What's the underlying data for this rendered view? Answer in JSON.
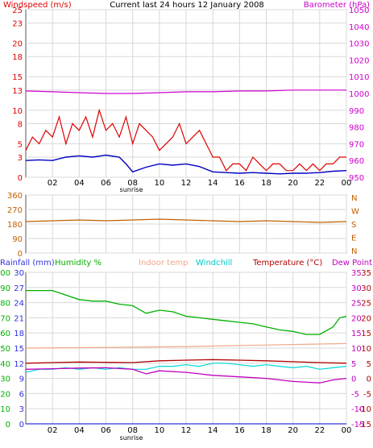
{
  "title": "Current last 24 hours 12 January 2008",
  "colors": {
    "wind": "#e00000",
    "wind_avg": "#0000c0",
    "baro": "#d000d0",
    "dir": "#c06000",
    "rain": "#3030e0",
    "humidity": "#00b000",
    "indoor": "#f0a888",
    "windchill": "#00d8d8",
    "temp": "#b00000",
    "dew": "#c000c0",
    "grid": "#d8d8d8"
  },
  "x_ticks": [
    "02",
    "04",
    "06",
    "08",
    "10",
    "12",
    "14",
    "16",
    "18",
    "20",
    "22",
    "00"
  ],
  "sunrise_label": "sunrise",
  "chart_data": [
    {
      "type": "line",
      "panel": "wind_pressure",
      "title": "Current last 24 hours 12 January 2008",
      "left_axis": {
        "label": "Windspeed (m/s)",
        "ticks": [
          0,
          3,
          5,
          8,
          10,
          13,
          15,
          18,
          20,
          23,
          25
        ],
        "range": [
          0,
          25
        ]
      },
      "right_axis": {
        "label": "Barometer (hPa)",
        "ticks": [
          950,
          960,
          970,
          980,
          990,
          1000,
          1010,
          1020,
          1030,
          1040,
          1050
        ],
        "range": [
          950,
          1050
        ]
      },
      "x_hours": [
        0,
        24
      ],
      "series": [
        {
          "key": "gust",
          "x": [
            0,
            0.5,
            1,
            1.5,
            2,
            2.5,
            3,
            3.5,
            4,
            4.5,
            5,
            5.5,
            6,
            6.5,
            7,
            7.5,
            8,
            8.5,
            9,
            9.5,
            10,
            10.5,
            11,
            11.5,
            12,
            12.5,
            13,
            13.5,
            14,
            14.5,
            15,
            15.5,
            16,
            16.5,
            17,
            17.5,
            18,
            18.5,
            19,
            19.5,
            20,
            20.5,
            21,
            21.5,
            22,
            22.5,
            23,
            23.5,
            24
          ],
          "values": [
            4,
            6,
            5,
            7,
            6,
            9,
            5,
            8,
            7,
            9,
            6,
            10,
            7,
            8,
            6,
            9,
            5,
            8,
            7,
            6,
            4,
            5,
            6,
            8,
            5,
            6,
            7,
            5,
            3,
            3,
            1,
            2,
            2,
            1,
            3,
            2,
            1,
            2,
            2,
            1,
            1,
            2,
            1,
            2,
            1,
            2,
            2,
            3,
            3
          ]
        },
        {
          "key": "avg",
          "x": [
            0,
            1,
            2,
            3,
            4,
            5,
            6,
            7,
            7.5,
            8,
            9,
            10,
            11,
            12,
            13,
            14,
            15,
            16,
            17,
            18,
            19,
            20,
            21,
            22,
            23,
            24
          ],
          "values": [
            2.5,
            2.6,
            2.5,
            3,
            3.2,
            3,
            3.3,
            3,
            2,
            0.8,
            1.5,
            2,
            1.8,
            2,
            1.6,
            0.8,
            0.7,
            0.6,
            0.7,
            0.6,
            0.5,
            0.6,
            0.6,
            0.7,
            0.9,
            1
          ]
        },
        {
          "key": "barometer",
          "x": [
            0,
            2,
            4,
            6,
            8,
            10,
            12,
            14,
            16,
            18,
            20,
            22,
            24
          ],
          "values": [
            1001.5,
            1001,
            1000.5,
            1000,
            1000,
            1000.5,
            1001,
            1001,
            1001.5,
            1001.5,
            1002,
            1002,
            1002
          ]
        }
      ]
    },
    {
      "type": "line",
      "panel": "wind_direction",
      "left_axis": {
        "ticks": [
          0,
          90,
          180,
          270,
          360
        ],
        "range": [
          0,
          360
        ]
      },
      "right_axis": {
        "ticks": [
          "N",
          "W",
          "S",
          "E",
          "N"
        ]
      },
      "series": [
        {
          "key": "direction",
          "x": [
            0,
            2,
            4,
            6,
            8,
            10,
            12,
            14,
            16,
            18,
            20,
            22,
            24
          ],
          "values": [
            195,
            200,
            205,
            200,
            205,
            210,
            205,
            200,
            195,
            200,
            195,
            190,
            195
          ]
        }
      ]
    },
    {
      "type": "line",
      "panel": "temperature_humidity",
      "axis_labels": {
        "rain": "Rainfall (mm)",
        "humidity": "Humidity %",
        "indoor": "Indoor temp",
        "windchill": "Windchill",
        "temp": "Temperature (°C)",
        "dew": "Dew Point"
      },
      "humidity_ticks": [
        0,
        10,
        20,
        30,
        40,
        50,
        60,
        70,
        80,
        90,
        100
      ],
      "rain_ticks": [
        0,
        3,
        6,
        9,
        12,
        15,
        18,
        21,
        24,
        27,
        30
      ],
      "temp_ticks": [
        35,
        30,
        25,
        20,
        15,
        10,
        5,
        0,
        -5,
        -10,
        -15
      ],
      "series": [
        {
          "key": "humidity",
          "x": [
            0,
            2,
            4,
            5,
            6,
            7,
            8,
            9,
            10,
            11,
            12,
            13,
            14,
            15,
            16,
            17,
            18,
            19,
            20,
            21,
            22,
            23,
            23.5,
            24
          ],
          "values": [
            88,
            88,
            82,
            81,
            81,
            79,
            78,
            73,
            75,
            74,
            71,
            70,
            69,
            68,
            67,
            66,
            64,
            62,
            61,
            59,
            59,
            64,
            70,
            71
          ]
        },
        {
          "key": "indoor",
          "x": [
            0,
            6,
            12,
            18,
            24
          ],
          "values": [
            10,
            10.2,
            10.5,
            11,
            11.5
          ]
        },
        {
          "key": "temperature",
          "x": [
            0,
            2,
            4,
            6,
            8,
            10,
            12,
            14,
            16,
            18,
            20,
            22,
            24
          ],
          "values": [
            5,
            5.2,
            5.4,
            5.3,
            5.2,
            5.8,
            6,
            6.2,
            6,
            5.8,
            5.5,
            5.2,
            5
          ]
        },
        {
          "key": "windchill",
          "x": [
            0,
            1,
            2,
            3,
            4,
            5,
            6,
            7,
            8,
            9,
            10,
            11,
            12,
            13,
            14,
            15,
            16,
            17,
            18,
            19,
            20,
            21,
            22,
            23,
            24
          ],
          "values": [
            2,
            3,
            3,
            3.5,
            3,
            3.5,
            3,
            3.5,
            3,
            3,
            4,
            4,
            4.5,
            4,
            5,
            5,
            4.5,
            4,
            4.5,
            4,
            3.5,
            4,
            3,
            3.5,
            4
          ]
        },
        {
          "key": "dew",
          "x": [
            0,
            2,
            4,
            6,
            8,
            9,
            10,
            12,
            14,
            16,
            18,
            20,
            22,
            23,
            24
          ],
          "values": [
            3,
            3.2,
            3.4,
            3.5,
            3,
            1.5,
            2.5,
            2,
            1,
            0.5,
            0,
            -1,
            -1.5,
            -0.5,
            0
          ]
        },
        {
          "key": "rain",
          "x": [
            0,
            24
          ],
          "values": [
            0,
            0
          ]
        }
      ]
    }
  ]
}
